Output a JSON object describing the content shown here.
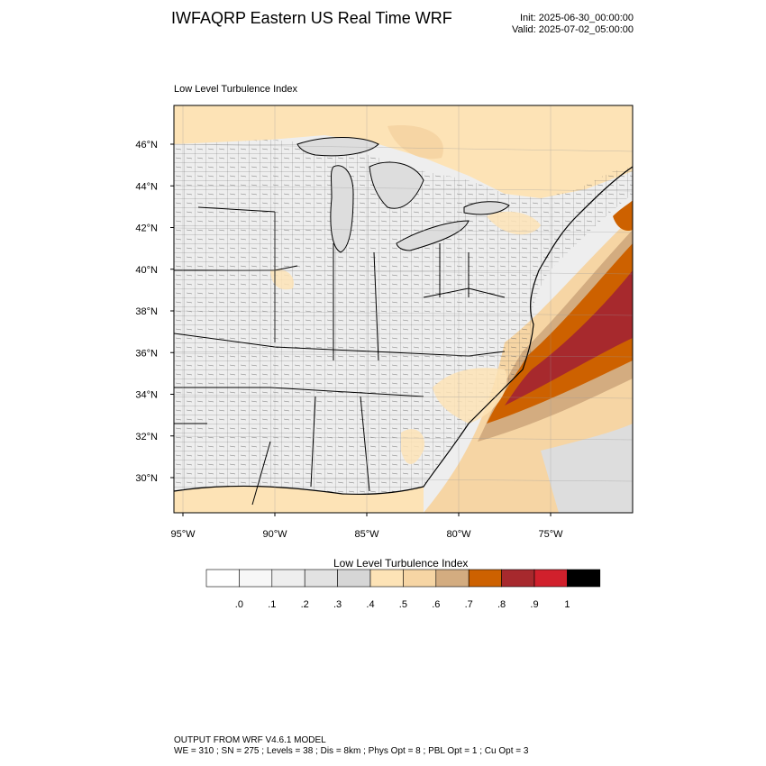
{
  "header": {
    "title": "IWFAQRP Eastern US Real Time WRF",
    "init": "Init: 2025-06-30_00:00:00",
    "valid": "Valid: 2025-07-02_05:00:00"
  },
  "map": {
    "subtitle": "Low Level Turbulence Index",
    "lat_labels": [
      "46°N",
      "44°N",
      "42°N",
      "40°N",
      "38°N",
      "36°N",
      "34°N",
      "32°N",
      "30°N"
    ],
    "lon_labels": [
      "95°W",
      "90°W",
      "85°W",
      "80°W",
      "75°W"
    ]
  },
  "colorbar": {
    "title": "Low Level Turbulence Index",
    "colors": [
      "#ffffff",
      "#f7f7f7",
      "#eeeeee",
      "#e2e2e2",
      "#d6d6d6",
      "#fde3b6",
      "#f6d5a4",
      "#d3ac80",
      "#cd6100",
      "#a7292d",
      "#d1202c",
      "#000000"
    ],
    "labels": [
      ".0",
      ".1",
      ".2",
      ".3",
      ".4",
      ".5",
      ".6",
      ".7",
      ".8",
      ".9",
      "1"
    ]
  },
  "footer": {
    "line1": "OUTPUT FROM WRF V4.6.1 MODEL",
    "line2": "WE = 310 ; SN = 275 ; Levels = 38 ; Dis = 8km ; Phys Opt = 8 ; PBL Opt = 1 ; Cu Opt = 3"
  }
}
